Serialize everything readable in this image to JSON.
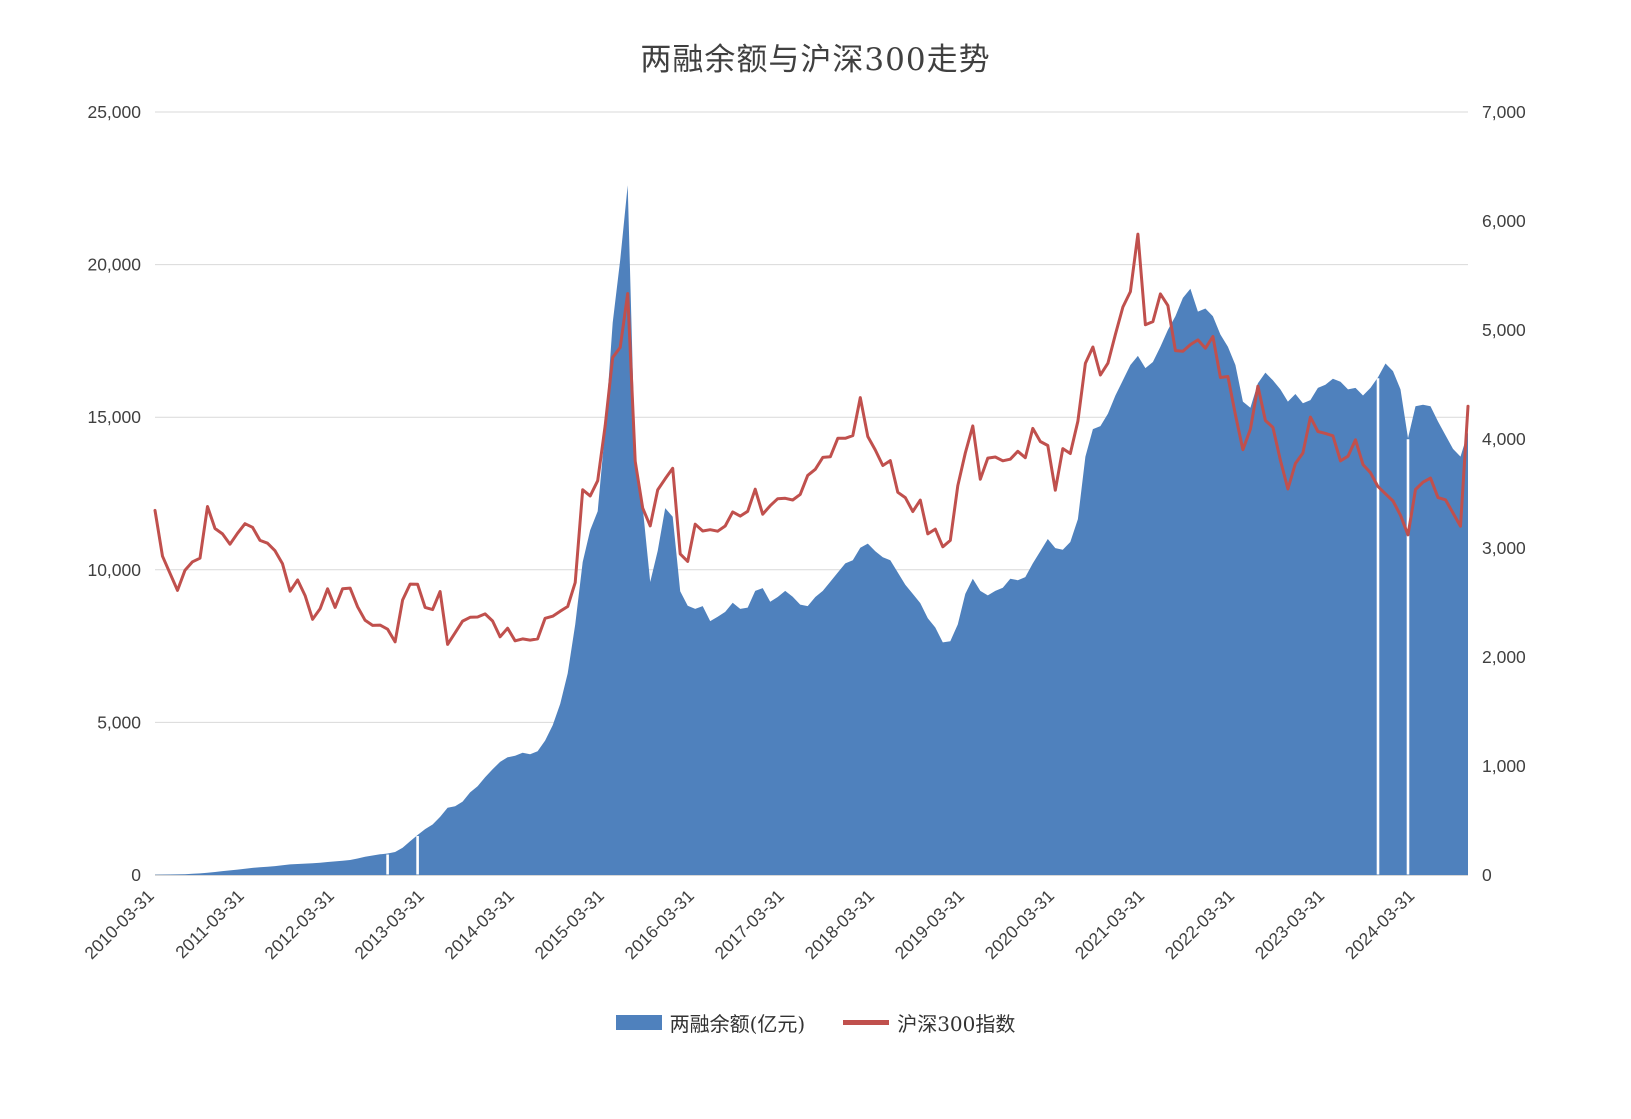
{
  "page": {
    "title": "两融余额与沪深300走势"
  },
  "legend": {
    "series1_label": "两融余额(亿元)",
    "series2_label": "沪深300指数"
  },
  "colors": {
    "margin_area": "#4f81bd",
    "index_line": "#c0504d",
    "grid": "#d9d9d9",
    "baseline": "#bfbfbf",
    "axis_text": "#404040",
    "background": "#ffffff"
  },
  "chart_data": {
    "type": "area+line combo",
    "title": "两融余额与沪深300走势",
    "grid": "horizontal",
    "legend_position": "bottom",
    "x_start": "2010-03",
    "x_interval": "monthly",
    "x_tick_labels": [
      "2010-03-31",
      "2011-03-31",
      "2012-03-31",
      "2013-03-31",
      "2014-03-31",
      "2015-03-31",
      "2016-03-31",
      "2017-03-31",
      "2018-03-31",
      "2019-03-31",
      "2020-03-31",
      "2021-03-31",
      "2022-03-31",
      "2023-03-31",
      "2024-03-31"
    ],
    "x_tick_month_indices": [
      0,
      12,
      24,
      36,
      48,
      60,
      72,
      84,
      96,
      108,
      120,
      132,
      144,
      156,
      168
    ],
    "left_axis": {
      "series": "两融余额(亿元)",
      "min": 0,
      "max": 25000,
      "tick_values": [
        0,
        5000,
        10000,
        15000,
        20000,
        25000
      ],
      "tick_labels": [
        "0",
        "5,000",
        "10,000",
        "15,000",
        "20,000",
        "25,000"
      ]
    },
    "right_axis": {
      "series": "沪深300指数",
      "min": 0,
      "max": 7000,
      "tick_values": [
        0,
        1000,
        2000,
        3000,
        4000,
        5000,
        6000,
        7000
      ],
      "tick_labels": [
        "0",
        "1,000",
        "2,000",
        "3,000",
        "4,000",
        "5,000",
        "6,000",
        "7,000"
      ]
    },
    "data_gaps": [
      "2012-10",
      "2013-02",
      "2023-10",
      "2024-02"
    ],
    "series": [
      {
        "name": "两融余额(亿元)",
        "type": "area",
        "axis": "left",
        "values": [
          8,
          12,
          16,
          20,
          26,
          38,
          52,
          72,
          98,
          128,
          152,
          176,
          205,
          232,
          256,
          272,
          293,
          322,
          348,
          362,
          374,
          382,
          402,
          425,
          445,
          465,
          492,
          540,
          598,
          640,
          678,
          705,
          755,
          895,
          1105,
          1310,
          1505,
          1655,
          1905,
          2205,
          2255,
          2405,
          2705,
          2905,
          3205,
          3465,
          3705,
          3855,
          3905,
          4005,
          3955,
          4055,
          4405,
          4905,
          5605,
          6605,
          8205,
          10256,
          11300,
          11920,
          14620,
          18100,
          20150,
          22600,
          13600,
          12050,
          9600,
          10620,
          12020,
          11740,
          9300,
          8820,
          8720,
          8810,
          8320,
          8460,
          8620,
          8920,
          8720,
          8760,
          9310,
          9400,
          8950,
          9110,
          9310,
          9120,
          8860,
          8810,
          9110,
          9310,
          9610,
          9910,
          10210,
          10310,
          10720,
          10860,
          10610,
          10410,
          10310,
          9910,
          9510,
          9210,
          8910,
          8410,
          8110,
          7620,
          7660,
          8210,
          9210,
          9710,
          9310,
          9160,
          9310,
          9410,
          9710,
          9660,
          9760,
          10210,
          10610,
          11010,
          10710,
          10660,
          10910,
          11660,
          13710,
          14610,
          14710,
          15110,
          15710,
          16210,
          16710,
          17010,
          16610,
          16810,
          17310,
          17860,
          18310,
          18910,
          19210,
          18460,
          18560,
          18310,
          17710,
          17310,
          16710,
          15510,
          15310,
          16110,
          16460,
          16210,
          15910,
          15510,
          15760,
          15460,
          15560,
          15960,
          16060,
          16260,
          16160,
          15910,
          15960,
          15710,
          15960,
          16310,
          16760,
          16510,
          15910,
          14310,
          15360,
          15410,
          15360,
          14860,
          14410,
          13960,
          13710,
          14510
        ]
      },
      {
        "name": "沪深300指数",
        "type": "line",
        "axis": "right",
        "values": [
          3345,
          2925,
          2768,
          2611,
          2796,
          2873,
          2906,
          3381,
          3179,
          3129,
          3035,
          3135,
          3223,
          3190,
          3070,
          3044,
          2975,
          2855,
          2604,
          2707,
          2563,
          2346,
          2442,
          2626,
          2455,
          2627,
          2632,
          2461,
          2337,
          2290,
          2293,
          2255,
          2139,
          2523,
          2669,
          2667,
          2455,
          2435,
          2601,
          2116,
          2222,
          2329,
          2364,
          2367,
          2395,
          2330,
          2185,
          2264,
          2149,
          2166,
          2155,
          2166,
          2355,
          2374,
          2420,
          2463,
          2683,
          3534,
          3478,
          3617,
          4124,
          4748,
          4840,
          5335,
          3796,
          3366,
          3203,
          3533,
          3635,
          3731,
          2946,
          2877,
          3218,
          3156,
          3168,
          3154,
          3202,
          3331,
          3293,
          3337,
          3539,
          3310,
          3388,
          3452,
          3456,
          3440,
          3492,
          3666,
          3722,
          3831,
          3837,
          4006,
          4006,
          4031,
          4380,
          4023,
          3899,
          3757,
          3802,
          3511,
          3462,
          3335,
          3439,
          3129,
          3173,
          3011,
          3070,
          3572,
          3872,
          4120,
          3630,
          3825,
          3835,
          3800,
          3815,
          3887,
          3828,
          4097,
          3977,
          3940,
          3530,
          3912,
          3867,
          4164,
          4695,
          4844,
          4587,
          4695,
          4960,
          5211,
          5352,
          5880,
          5048,
          5077,
          5331,
          5224,
          4811,
          4805,
          4866,
          4909,
          4832,
          4940,
          4564,
          4573,
          4223,
          3902,
          4091,
          4485,
          4170,
          4107,
          3805,
          3541,
          3775,
          3872,
          4201,
          4069,
          4051,
          4029,
          3799,
          3842,
          3993,
          3765,
          3690,
          3563,
          3497,
          3431,
          3300,
          3120,
          3537,
          3604,
          3641,
          3462,
          3442,
          3321,
          3200,
          4300
        ]
      }
    ]
  }
}
